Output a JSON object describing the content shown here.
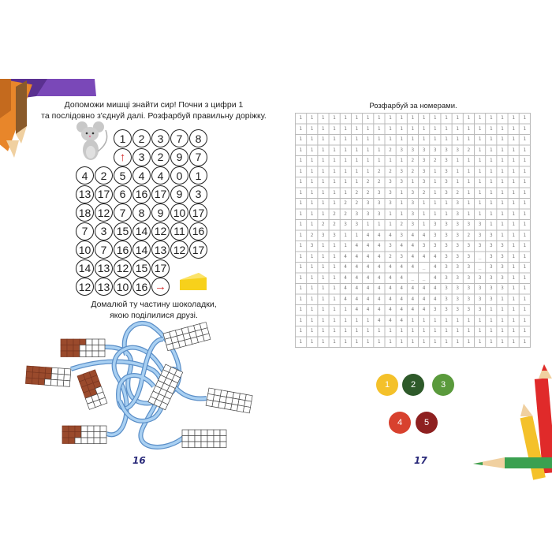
{
  "left_page": {
    "instruction_1": [
      "Допоможи мишці знайти сир! Почни з цифри 1",
      "та послідовно з'єднуй далі. Розфарбуй правильну доріжку."
    ],
    "maze": {
      "rows": [
        [
          "",
          "",
          "1",
          "2",
          "3",
          "7",
          "8"
        ],
        [
          "",
          "",
          "↑",
          "3",
          "2",
          "9",
          "7"
        ],
        [
          "4",
          "2",
          "5",
          "4",
          "4",
          "0",
          "1"
        ],
        [
          "13",
          "17",
          "6",
          "16",
          "17",
          "9",
          "3"
        ],
        [
          "18",
          "12",
          "7",
          "8",
          "9",
          "10",
          "17"
        ],
        [
          "7",
          "3",
          "15",
          "14",
          "12",
          "11",
          "16"
        ],
        [
          "10",
          "7",
          "16",
          "14",
          "13",
          "12",
          "17"
        ],
        [
          "14",
          "13",
          "12",
          "15",
          "17",
          "",
          ""
        ],
        [
          "12",
          "13",
          "10",
          "16",
          "→",
          "",
          ""
        ]
      ],
      "arrow_color": "#d42a2a",
      "start_icon": "mouse-icon",
      "goal_icon": "cheese-icon"
    },
    "instruction_2": [
      "Домалюй ту частину шоколадки,",
      "якою поділилися друзі."
    ],
    "chocolate_bars_filled_cells": [
      10,
      11,
      11,
      8,
      0,
      0,
      0,
      0
    ],
    "page_number": "16"
  },
  "right_page": {
    "title": "Розфарбуй за номерами.",
    "grid": [
      "111111111111111111111",
      "111111111111111111111",
      "111111111111111111111",
      "111111112333333211111",
      "111111111123231111111",
      "111111122323131111111",
      "111111223313131111111",
      "111112233132132111111",
      "111122333131113111111",
      "111223331131113111111",
      "112233111231333331111",
      "123311444344333233111",
      "131114443443333333311",
      "1111444423444333_3311",
      "11114444444_4333_3311",
      "1111444444__433333311",
      "111144444444433333311",
      "111144444444433333111",
      "111114444444333331111",
      "111111144411111111111",
      "111111111111111111111",
      "111111111111111111111"
    ],
    "legend": [
      {
        "label": "1",
        "color": "#f4c12a"
      },
      {
        "label": "2",
        "color": "#2e5a2a"
      },
      {
        "label": "3",
        "color": "#5a9a3c"
      },
      {
        "label": "4",
        "color": "#d8412e"
      },
      {
        "label": "5",
        "color": "#8e2020"
      }
    ],
    "page_number": "17"
  }
}
